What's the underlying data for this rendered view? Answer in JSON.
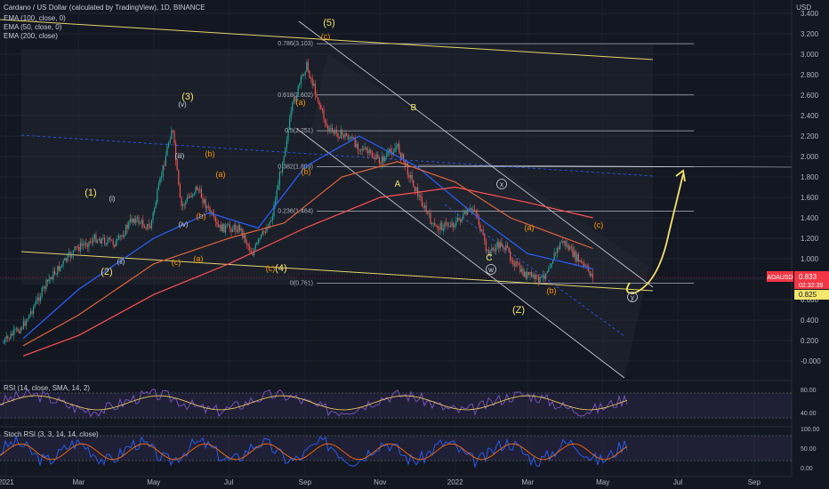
{
  "header": {
    "title": "Cardano / US Dollar (calculated by TradingView), 1D, BINANCE",
    "currency": "USD"
  },
  "ema_legend": [
    "EMA (100, close, 0)",
    "EMA (50, close, 0)",
    "EMA (200, close)"
  ],
  "colors": {
    "background": "#131722",
    "up": "#26a69a",
    "down": "#ef5350",
    "ema100": "#e0663a",
    "ema50": "#2962ff",
    "ema200": "#ff5252",
    "trend": "#e6d66a",
    "fib": "#b2b5be",
    "price_label": "#f23645",
    "osc": "#7e57c2",
    "signal": "#e6c45a"
  },
  "price_axis": {
    "labels": [
      "3.400",
      "3.200",
      "3.000",
      "2.800",
      "2.600",
      "2.400",
      "2.200",
      "2.000",
      "1.800",
      "1.600",
      "1.400",
      "1.200",
      "1.000",
      "0.800",
      "0.600",
      "0.400",
      "0.200",
      "-0.000"
    ]
  },
  "time_axis": {
    "labels": [
      "2021",
      "Mar",
      "May",
      "Jul",
      "Sep",
      "Nov",
      "2022",
      "Mar",
      "May",
      "Jul",
      "Sep"
    ]
  },
  "price_tags": {
    "symbol": "ADAUSD",
    "last": "0.833",
    "countdown": "02:32:39",
    "ema": "0.825"
  },
  "fib_levels": [
    "0.786(3.103)",
    "0.618(2.602)",
    "0.5(2.251)",
    "0.382(1.899)",
    "0.236(1.464)",
    "0(0.761)"
  ],
  "wave_labels": [
    "(1)",
    "(2)",
    "(3)",
    "(4)",
    "(5)",
    "(i)",
    "(ii)",
    "(iii)",
    "(iv)",
    "(v)",
    "(a)",
    "(b)",
    "(c)",
    "A",
    "B",
    "C",
    "(Z)",
    "(a)",
    "(b)",
    "(c)",
    "(a)",
    "(b)",
    "(c)",
    "(a)",
    "(b)",
    "(c)",
    "w",
    "x",
    "y"
  ],
  "rsi": {
    "title": "RSI (14, close, SMA, 14, 2)",
    "axis": [
      "80.00",
      "40.00"
    ]
  },
  "stoch": {
    "title": "Stoch RSI (3, 3, 14, 14, close)",
    "axis": [
      "100.00",
      "50.00",
      "0.00"
    ]
  },
  "chart_data": {
    "type": "line",
    "title": "Cardano / US Dollar (calculated by TradingView), 1D, BINANCE",
    "xlabel": "",
    "ylabel": "USD",
    "ylim": [
      -0.1,
      3.45
    ],
    "x_range": [
      "2020-12-28",
      "2022-09-10"
    ],
    "series": [
      {
        "name": "ADAUSD",
        "x": [
          "2020-12-30",
          "2021-01-15",
          "2021-02-05",
          "2021-02-27",
          "2021-03-15",
          "2021-04-01",
          "2021-04-14",
          "2021-04-28",
          "2021-05-16",
          "2021-05-23",
          "2021-06-05",
          "2021-06-22",
          "2021-07-10",
          "2021-07-20",
          "2021-08-05",
          "2021-08-22",
          "2021-09-02",
          "2021-09-20",
          "2021-10-05",
          "2021-10-20",
          "2021-11-01",
          "2021-11-15",
          "2021-12-01",
          "2021-12-15",
          "2022-01-01",
          "2022-01-17",
          "2022-01-27",
          "2022-02-08",
          "2022-02-24",
          "2022-03-12",
          "2022-03-29",
          "2022-04-10",
          "2022-04-23"
        ],
        "values": [
          0.18,
          0.35,
          0.8,
          1.1,
          1.2,
          1.15,
          1.4,
          1.3,
          2.3,
          1.5,
          1.7,
          1.3,
          1.3,
          1.05,
          1.4,
          2.5,
          2.9,
          2.25,
          2.2,
          2.05,
          1.95,
          2.1,
          1.65,
          1.3,
          1.35,
          1.5,
          1.05,
          1.15,
          0.86,
          0.79,
          1.18,
          1.0,
          0.83
        ]
      },
      {
        "name": "EMA (50, close, 0)",
        "x": [
          "2021-01-15",
          "2021-03-01",
          "2021-05-01",
          "2021-06-15",
          "2021-07-25",
          "2021-09-01",
          "2021-10-15",
          "2021-12-01",
          "2022-01-15",
          "2022-03-01",
          "2022-04-23"
        ],
        "values": [
          0.22,
          0.7,
          1.2,
          1.45,
          1.3,
          1.9,
          2.2,
          1.9,
          1.45,
          1.05,
          0.9
        ]
      },
      {
        "name": "EMA (100, close, 0)",
        "x": [
          "2021-01-15",
          "2021-03-01",
          "2021-05-01",
          "2021-07-01",
          "2021-08-15",
          "2021-10-01",
          "2021-11-15",
          "2022-01-01",
          "2022-02-15",
          "2022-04-23"
        ],
        "values": [
          0.15,
          0.45,
          0.95,
          1.2,
          1.35,
          1.8,
          1.95,
          1.75,
          1.4,
          1.1
        ]
      },
      {
        "name": "EMA (200, close)",
        "x": [
          "2021-01-15",
          "2021-03-01",
          "2021-05-01",
          "2021-07-01",
          "2021-09-01",
          "2021-11-01",
          "2022-01-01",
          "2022-03-01",
          "2022-04-23"
        ],
        "values": [
          0.05,
          0.25,
          0.65,
          0.95,
          1.3,
          1.6,
          1.7,
          1.55,
          1.4
        ]
      }
    ]
  }
}
